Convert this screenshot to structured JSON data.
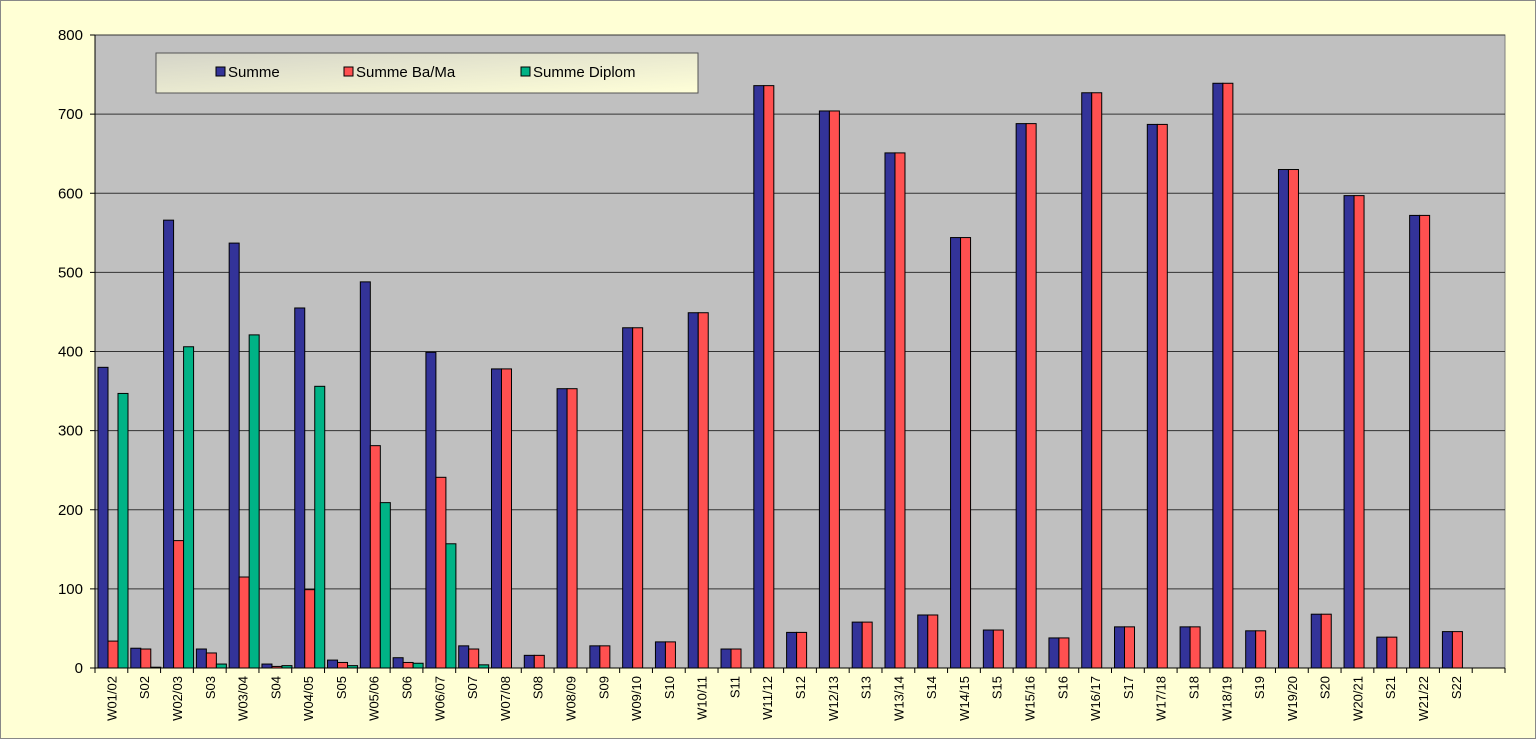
{
  "chart_data": {
    "type": "bar",
    "title": "",
    "xlabel": "",
    "ylabel": "",
    "ylim": [
      0,
      800
    ],
    "yticks": [
      0,
      100,
      200,
      300,
      400,
      500,
      600,
      700,
      800
    ],
    "grid": true,
    "legend_position": "top-left",
    "categories": [
      "W01/02",
      "S02",
      "W02/03",
      "S03",
      "W03/04",
      "S04",
      "W04/05",
      "S05",
      "W05/06",
      "S06",
      "W06/07",
      "S07",
      "W07/08",
      "S08",
      "W08/09",
      "S09",
      "W09/10",
      "S10",
      "W10/11",
      "S11",
      "W11/12",
      "S12",
      "W12/13",
      "S13",
      "W13/14",
      "S14",
      "W14/15",
      "S15",
      "W15/16",
      "S16",
      "W16/17",
      "S17",
      "W17/18",
      "S18",
      "W18/19",
      "S19",
      "W19/20",
      "S20",
      "W20/21",
      "S21",
      "W21/22",
      "S22"
    ],
    "series": [
      {
        "name": "Summe",
        "color": "#333399",
        "values": [
          380,
          25,
          566,
          24,
          537,
          5,
          455,
          10,
          488,
          13,
          399,
          28,
          378,
          16,
          353,
          28,
          430,
          33,
          449,
          24,
          736,
          45,
          704,
          58,
          651,
          67,
          544,
          48,
          688,
          38,
          727,
          52,
          687,
          52,
          739,
          47,
          630,
          68,
          597,
          39,
          572,
          46
        ]
      },
      {
        "name": "Summe Ba/Ma",
        "color": "#FF5050",
        "values": [
          34,
          24,
          161,
          19,
          115,
          2,
          99,
          7,
          281,
          7,
          241,
          24,
          378,
          16,
          353,
          28,
          430,
          33,
          449,
          24,
          736,
          45,
          704,
          58,
          651,
          67,
          544,
          48,
          688,
          38,
          727,
          52,
          687,
          52,
          739,
          47,
          630,
          68,
          597,
          39,
          572,
          46
        ]
      },
      {
        "name": "Summe Diplom",
        "color": "#00B386",
        "values": [
          347,
          1,
          406,
          5,
          421,
          3,
          356,
          3,
          209,
          6,
          157,
          4,
          null,
          null,
          null,
          null,
          null,
          null,
          null,
          null,
          null,
          null,
          null,
          null,
          null,
          null,
          null,
          null,
          null,
          null,
          null,
          null,
          null,
          null,
          null,
          null,
          null,
          null,
          null,
          null,
          null,
          null
        ]
      }
    ]
  }
}
